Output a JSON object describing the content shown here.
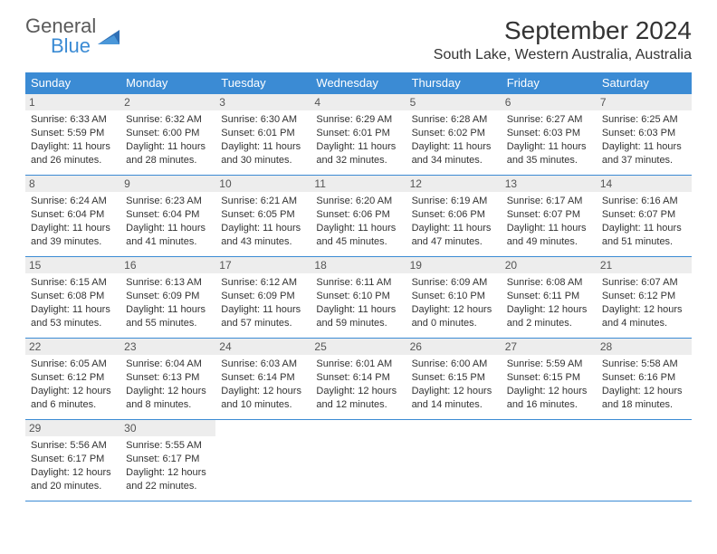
{
  "brand": {
    "top": "General",
    "bottom": "Blue"
  },
  "title": "September 2024",
  "location": "South Lake, Western Australia, Australia",
  "colors": {
    "header_bg": "#3b8bd4",
    "header_text": "#ffffff",
    "daynum_bg": "#ededed",
    "border": "#3b8bd4",
    "body_text": "#333333"
  },
  "weekdays": [
    "Sunday",
    "Monday",
    "Tuesday",
    "Wednesday",
    "Thursday",
    "Friday",
    "Saturday"
  ],
  "weeks": [
    [
      {
        "n": "1",
        "sr": "Sunrise: 6:33 AM",
        "ss": "Sunset: 5:59 PM",
        "d1": "Daylight: 11 hours",
        "d2": "and 26 minutes."
      },
      {
        "n": "2",
        "sr": "Sunrise: 6:32 AM",
        "ss": "Sunset: 6:00 PM",
        "d1": "Daylight: 11 hours",
        "d2": "and 28 minutes."
      },
      {
        "n": "3",
        "sr": "Sunrise: 6:30 AM",
        "ss": "Sunset: 6:01 PM",
        "d1": "Daylight: 11 hours",
        "d2": "and 30 minutes."
      },
      {
        "n": "4",
        "sr": "Sunrise: 6:29 AM",
        "ss": "Sunset: 6:01 PM",
        "d1": "Daylight: 11 hours",
        "d2": "and 32 minutes."
      },
      {
        "n": "5",
        "sr": "Sunrise: 6:28 AM",
        "ss": "Sunset: 6:02 PM",
        "d1": "Daylight: 11 hours",
        "d2": "and 34 minutes."
      },
      {
        "n": "6",
        "sr": "Sunrise: 6:27 AM",
        "ss": "Sunset: 6:03 PM",
        "d1": "Daylight: 11 hours",
        "d2": "and 35 minutes."
      },
      {
        "n": "7",
        "sr": "Sunrise: 6:25 AM",
        "ss": "Sunset: 6:03 PM",
        "d1": "Daylight: 11 hours",
        "d2": "and 37 minutes."
      }
    ],
    [
      {
        "n": "8",
        "sr": "Sunrise: 6:24 AM",
        "ss": "Sunset: 6:04 PM",
        "d1": "Daylight: 11 hours",
        "d2": "and 39 minutes."
      },
      {
        "n": "9",
        "sr": "Sunrise: 6:23 AM",
        "ss": "Sunset: 6:04 PM",
        "d1": "Daylight: 11 hours",
        "d2": "and 41 minutes."
      },
      {
        "n": "10",
        "sr": "Sunrise: 6:21 AM",
        "ss": "Sunset: 6:05 PM",
        "d1": "Daylight: 11 hours",
        "d2": "and 43 minutes."
      },
      {
        "n": "11",
        "sr": "Sunrise: 6:20 AM",
        "ss": "Sunset: 6:06 PM",
        "d1": "Daylight: 11 hours",
        "d2": "and 45 minutes."
      },
      {
        "n": "12",
        "sr": "Sunrise: 6:19 AM",
        "ss": "Sunset: 6:06 PM",
        "d1": "Daylight: 11 hours",
        "d2": "and 47 minutes."
      },
      {
        "n": "13",
        "sr": "Sunrise: 6:17 AM",
        "ss": "Sunset: 6:07 PM",
        "d1": "Daylight: 11 hours",
        "d2": "and 49 minutes."
      },
      {
        "n": "14",
        "sr": "Sunrise: 6:16 AM",
        "ss": "Sunset: 6:07 PM",
        "d1": "Daylight: 11 hours",
        "d2": "and 51 minutes."
      }
    ],
    [
      {
        "n": "15",
        "sr": "Sunrise: 6:15 AM",
        "ss": "Sunset: 6:08 PM",
        "d1": "Daylight: 11 hours",
        "d2": "and 53 minutes."
      },
      {
        "n": "16",
        "sr": "Sunrise: 6:13 AM",
        "ss": "Sunset: 6:09 PM",
        "d1": "Daylight: 11 hours",
        "d2": "and 55 minutes."
      },
      {
        "n": "17",
        "sr": "Sunrise: 6:12 AM",
        "ss": "Sunset: 6:09 PM",
        "d1": "Daylight: 11 hours",
        "d2": "and 57 minutes."
      },
      {
        "n": "18",
        "sr": "Sunrise: 6:11 AM",
        "ss": "Sunset: 6:10 PM",
        "d1": "Daylight: 11 hours",
        "d2": "and 59 minutes."
      },
      {
        "n": "19",
        "sr": "Sunrise: 6:09 AM",
        "ss": "Sunset: 6:10 PM",
        "d1": "Daylight: 12 hours",
        "d2": "and 0 minutes."
      },
      {
        "n": "20",
        "sr": "Sunrise: 6:08 AM",
        "ss": "Sunset: 6:11 PM",
        "d1": "Daylight: 12 hours",
        "d2": "and 2 minutes."
      },
      {
        "n": "21",
        "sr": "Sunrise: 6:07 AM",
        "ss": "Sunset: 6:12 PM",
        "d1": "Daylight: 12 hours",
        "d2": "and 4 minutes."
      }
    ],
    [
      {
        "n": "22",
        "sr": "Sunrise: 6:05 AM",
        "ss": "Sunset: 6:12 PM",
        "d1": "Daylight: 12 hours",
        "d2": "and 6 minutes."
      },
      {
        "n": "23",
        "sr": "Sunrise: 6:04 AM",
        "ss": "Sunset: 6:13 PM",
        "d1": "Daylight: 12 hours",
        "d2": "and 8 minutes."
      },
      {
        "n": "24",
        "sr": "Sunrise: 6:03 AM",
        "ss": "Sunset: 6:14 PM",
        "d1": "Daylight: 12 hours",
        "d2": "and 10 minutes."
      },
      {
        "n": "25",
        "sr": "Sunrise: 6:01 AM",
        "ss": "Sunset: 6:14 PM",
        "d1": "Daylight: 12 hours",
        "d2": "and 12 minutes."
      },
      {
        "n": "26",
        "sr": "Sunrise: 6:00 AM",
        "ss": "Sunset: 6:15 PM",
        "d1": "Daylight: 12 hours",
        "d2": "and 14 minutes."
      },
      {
        "n": "27",
        "sr": "Sunrise: 5:59 AM",
        "ss": "Sunset: 6:15 PM",
        "d1": "Daylight: 12 hours",
        "d2": "and 16 minutes."
      },
      {
        "n": "28",
        "sr": "Sunrise: 5:58 AM",
        "ss": "Sunset: 6:16 PM",
        "d1": "Daylight: 12 hours",
        "d2": "and 18 minutes."
      }
    ],
    [
      {
        "n": "29",
        "sr": "Sunrise: 5:56 AM",
        "ss": "Sunset: 6:17 PM",
        "d1": "Daylight: 12 hours",
        "d2": "and 20 minutes."
      },
      {
        "n": "30",
        "sr": "Sunrise: 5:55 AM",
        "ss": "Sunset: 6:17 PM",
        "d1": "Daylight: 12 hours",
        "d2": "and 22 minutes."
      },
      {
        "empty": true
      },
      {
        "empty": true
      },
      {
        "empty": true
      },
      {
        "empty": true
      },
      {
        "empty": true
      }
    ]
  ]
}
